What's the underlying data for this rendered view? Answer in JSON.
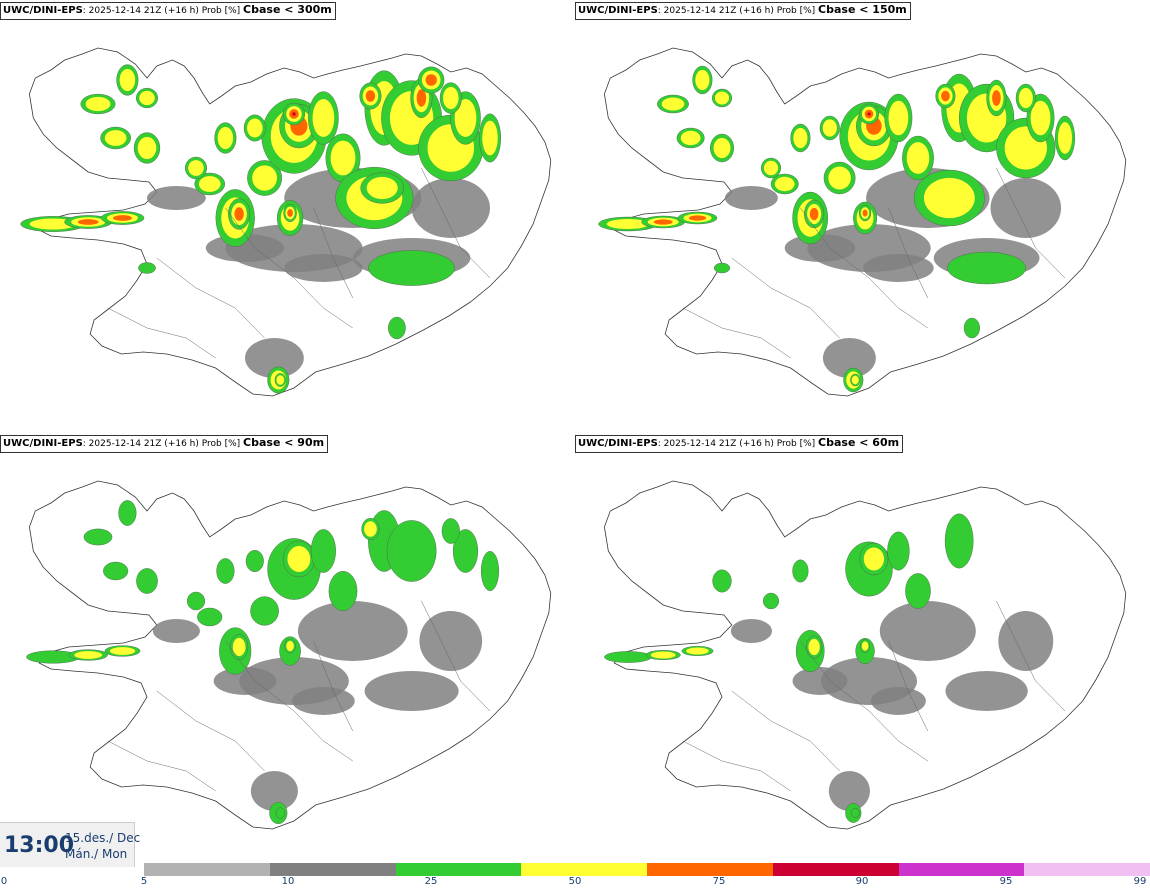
{
  "panels": [
    {
      "model": "UWC/DINI-EPS",
      "meta": ": 2025-12-14 21Z (+16 h) Prob [%] ",
      "threshold": "Cbase < 300m",
      "intensity": 4
    },
    {
      "model": "UWC/DINI-EPS",
      "meta": ": 2025-12-14 21Z (+16 h) Prob [%] ",
      "threshold": "Cbase < 150m",
      "intensity": 3
    },
    {
      "model": "UWC/DINI-EPS",
      "meta": ": 2025-12-14 21Z (+16 h) Prob [%] ",
      "threshold": "Cbase < 90m",
      "intensity": 2
    },
    {
      "model": "UWC/DINI-EPS",
      "meta": ": 2025-12-14 21Z (+16 h) Prob [%] ",
      "threshold": "Cbase < 60m",
      "intensity": 1
    }
  ],
  "time_box": {
    "time": "13:00",
    "date_line1": "15.des./ Dec",
    "date_line2": "Mán./ Mon"
  },
  "legend": {
    "labels": [
      "0",
      "5",
      "10",
      "25",
      "50",
      "75",
      "90",
      "95",
      "99"
    ],
    "colors": [
      "#b2b2b2",
      "#808080",
      "#33cc33",
      "#ffff33",
      "#ff6600",
      "#cc0033",
      "#cc33cc",
      "#f2bff2"
    ]
  }
}
